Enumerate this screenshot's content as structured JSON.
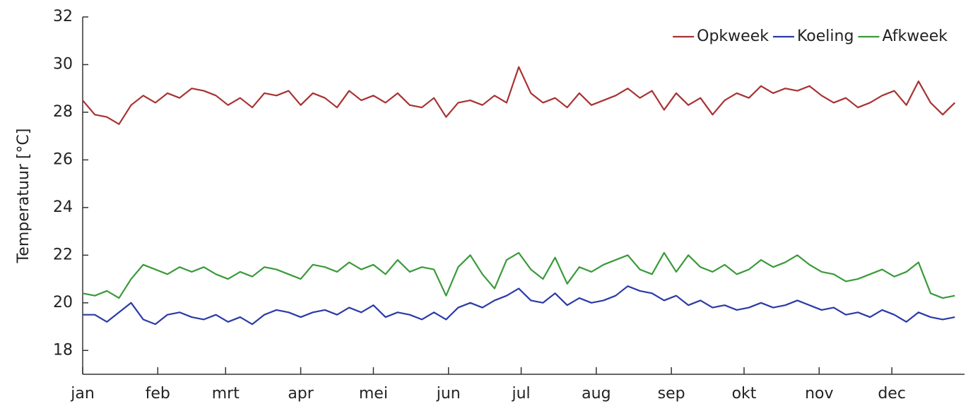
{
  "chart_data": {
    "type": "line",
    "ylabel": "Temperatuur [°C]",
    "x": [
      1,
      6,
      11,
      16,
      21,
      26,
      31,
      36,
      41,
      46,
      51,
      56,
      61,
      66,
      71,
      76,
      81,
      86,
      91,
      96,
      101,
      106,
      111,
      116,
      121,
      126,
      131,
      136,
      141,
      146,
      151,
      156,
      161,
      166,
      171,
      176,
      181,
      186,
      191,
      196,
      201,
      206,
      211,
      216,
      221,
      226,
      231,
      236,
      241,
      246,
      251,
      256,
      261,
      266,
      271,
      276,
      281,
      286,
      291,
      296,
      301,
      306,
      311,
      316,
      321,
      326,
      331,
      336,
      341,
      346,
      351,
      356,
      361
    ],
    "xlim": [
      1,
      365
    ],
    "xticks": [
      {
        "value": 1,
        "label": "jan"
      },
      {
        "value": 32,
        "label": "feb"
      },
      {
        "value": 60,
        "label": "mrt"
      },
      {
        "value": 91,
        "label": "apr"
      },
      {
        "value": 121,
        "label": "mei"
      },
      {
        "value": 152,
        "label": "jun"
      },
      {
        "value": 182,
        "label": "jul"
      },
      {
        "value": 213,
        "label": "aug"
      },
      {
        "value": 244,
        "label": "sep"
      },
      {
        "value": 274,
        "label": "okt"
      },
      {
        "value": 305,
        "label": "nov"
      },
      {
        "value": 335,
        "label": "dec"
      }
    ],
    "ylim": [
      17,
      32
    ],
    "yticks": [
      18,
      20,
      22,
      24,
      26,
      28,
      30,
      32
    ],
    "legend": "top-right",
    "series": [
      {
        "name": "Opkweek",
        "color": "#a83232",
        "values": [
          28.5,
          27.9,
          27.8,
          27.5,
          28.3,
          28.7,
          28.4,
          28.8,
          28.6,
          29.0,
          28.9,
          28.7,
          28.3,
          28.6,
          28.2,
          28.8,
          28.7,
          28.9,
          28.3,
          28.8,
          28.6,
          28.2,
          28.9,
          28.5,
          28.7,
          28.4,
          28.8,
          28.3,
          28.2,
          28.6,
          27.8,
          28.4,
          28.5,
          28.3,
          28.7,
          28.4,
          29.9,
          28.8,
          28.4,
          28.6,
          28.2,
          28.8,
          28.3,
          28.5,
          28.7,
          29.0,
          28.6,
          28.9,
          28.1,
          28.8,
          28.3,
          28.6,
          27.9,
          28.5,
          28.8,
          28.6,
          29.1,
          28.8,
          29.0,
          28.9,
          29.1,
          28.7,
          28.4,
          28.6,
          28.2,
          28.4,
          28.7,
          28.9,
          28.3,
          29.3,
          28.4,
          27.9,
          28.4
        ]
      },
      {
        "name": "Koeling",
        "color": "#2b3aa8",
        "values": [
          19.5,
          19.5,
          19.2,
          19.6,
          20.0,
          19.3,
          19.1,
          19.5,
          19.6,
          19.4,
          19.3,
          19.5,
          19.2,
          19.4,
          19.1,
          19.5,
          19.7,
          19.6,
          19.4,
          19.6,
          19.7,
          19.5,
          19.8,
          19.6,
          19.9,
          19.4,
          19.6,
          19.5,
          19.3,
          19.6,
          19.3,
          19.8,
          20.0,
          19.8,
          20.1,
          20.3,
          20.6,
          20.1,
          20.0,
          20.4,
          19.9,
          20.2,
          20.0,
          20.1,
          20.3,
          20.7,
          20.5,
          20.4,
          20.1,
          20.3,
          19.9,
          20.1,
          19.8,
          19.9,
          19.7,
          19.8,
          20.0,
          19.8,
          19.9,
          20.1,
          19.9,
          19.7,
          19.8,
          19.5,
          19.6,
          19.4,
          19.7,
          19.5,
          19.2,
          19.6,
          19.4,
          19.3,
          19.4
        ]
      },
      {
        "name": "Afkweek",
        "color": "#3a9a3a",
        "values": [
          20.4,
          20.3,
          20.5,
          20.2,
          21.0,
          21.6,
          21.4,
          21.2,
          21.5,
          21.3,
          21.5,
          21.2,
          21.0,
          21.3,
          21.1,
          21.5,
          21.4,
          21.2,
          21.0,
          21.6,
          21.5,
          21.3,
          21.7,
          21.4,
          21.6,
          21.2,
          21.8,
          21.3,
          21.5,
          21.4,
          20.3,
          21.5,
          22.0,
          21.2,
          20.6,
          21.8,
          22.1,
          21.4,
          21.0,
          21.9,
          20.8,
          21.5,
          21.3,
          21.6,
          21.8,
          22.0,
          21.4,
          21.2,
          22.1,
          21.3,
          22.0,
          21.5,
          21.3,
          21.6,
          21.2,
          21.4,
          21.8,
          21.5,
          21.7,
          22.0,
          21.6,
          21.3,
          21.2,
          20.9,
          21.0,
          21.2,
          21.4,
          21.1,
          21.3,
          21.7,
          20.4,
          20.2,
          20.3
        ]
      }
    ]
  }
}
